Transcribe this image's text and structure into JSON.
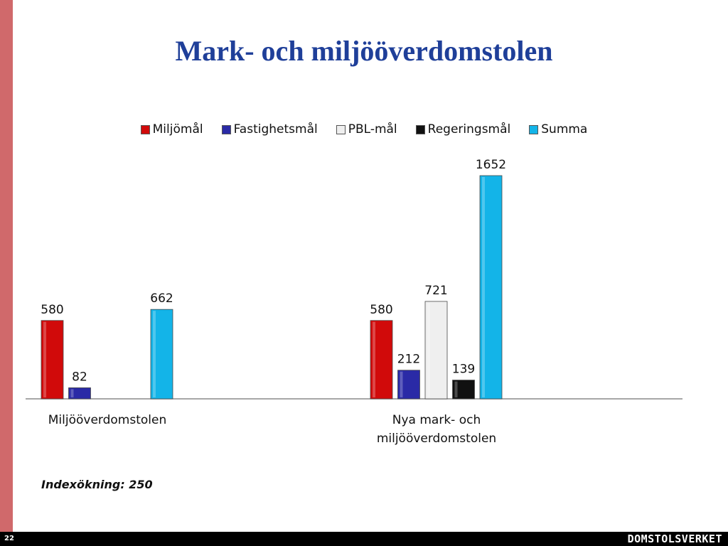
{
  "slide": {
    "title": "Mark- och miljööverdomstolen",
    "note": "Indexökning: 250",
    "page_number": "22",
    "brand": "DOMSTOLSVERKET"
  },
  "colors": {
    "side_bar": "#d0696b",
    "title": "#1f3f99"
  },
  "chart_data": {
    "type": "bar",
    "categories": [
      [
        "Miljööverdomstolen"
      ],
      [
        "Nya mark- och",
        "miljööverdomstolen"
      ]
    ],
    "series": [
      {
        "name": "Miljömål",
        "color": "#d10a0a",
        "values": [
          580,
          580
        ]
      },
      {
        "name": "Fastighetsmål",
        "color": "#2a2aa6",
        "values": [
          82,
          212
        ]
      },
      {
        "name": "PBL-mål",
        "color": "#efefef",
        "values": [
          null,
          721
        ]
      },
      {
        "name": "Regeringsmål",
        "color": "#111111",
        "values": [
          null,
          139
        ]
      },
      {
        "name": "Summa",
        "color": "#13b4e8",
        "values": [
          662,
          1652
        ]
      }
    ],
    "ylim": [
      0,
      1652
    ],
    "grid": false,
    "legend": "top",
    "data_labels": true
  }
}
